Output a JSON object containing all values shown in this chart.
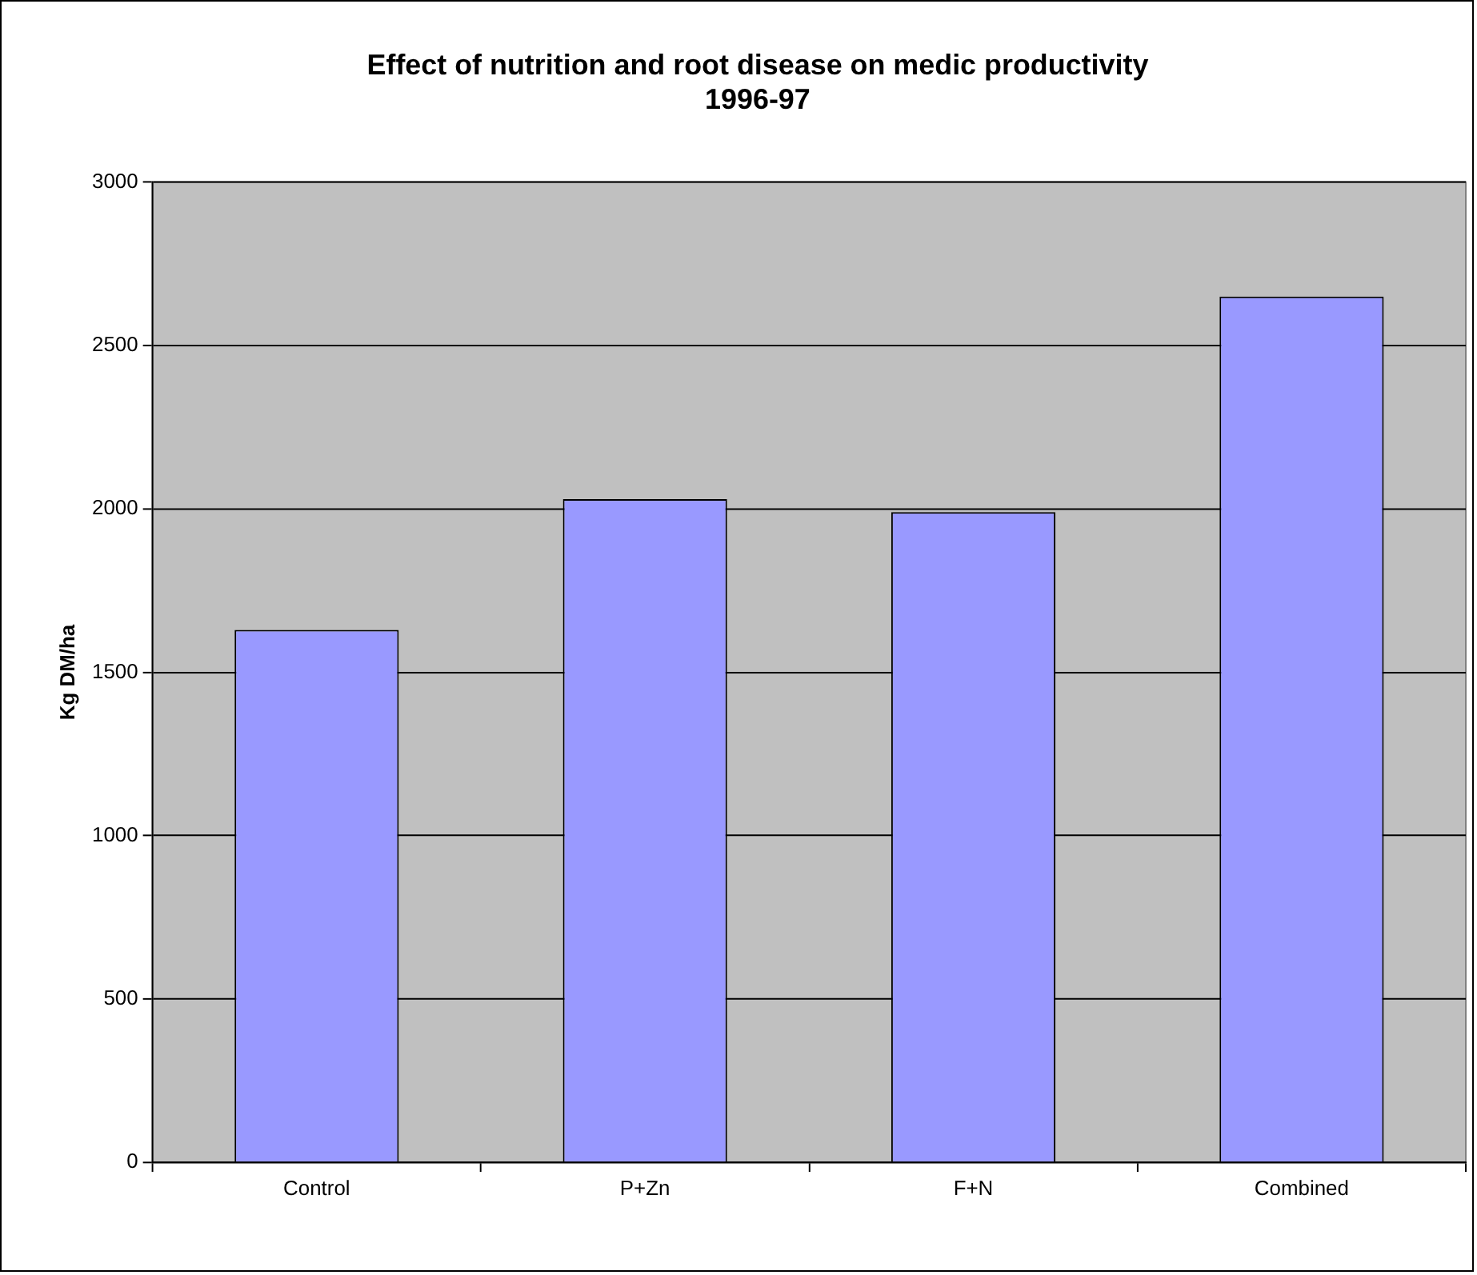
{
  "chart_data": {
    "type": "bar",
    "title": "Effect of nutrition and root disease on medic productivity 1996-97",
    "ylabel": "Kg DM/ha",
    "categories": [
      "Control",
      "P+Zn",
      "F+N",
      "Combined"
    ],
    "values": [
      1630,
      2030,
      1990,
      2650
    ],
    "color": "#9999ff",
    "ylim": [
      0,
      3000
    ],
    "yticks": [
      0,
      500,
      1000,
      1500,
      2000,
      2500,
      3000
    ],
    "grid": "y",
    "legend": false
  }
}
